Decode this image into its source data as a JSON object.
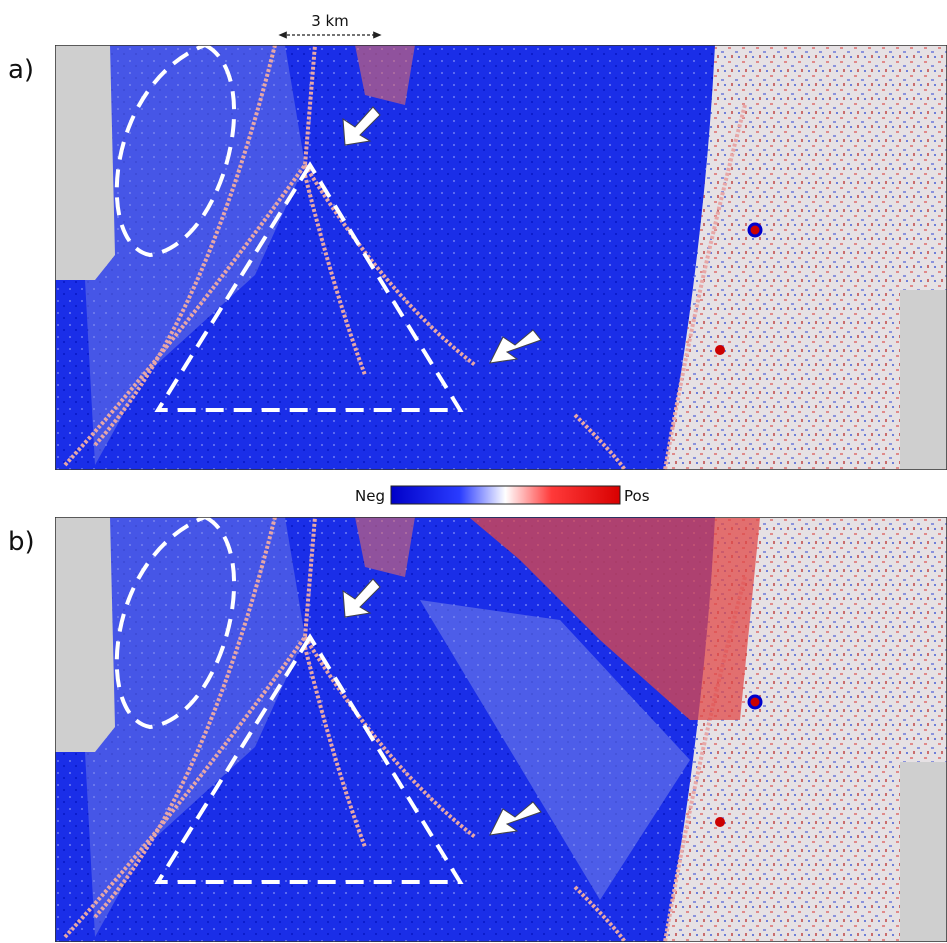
{
  "panels": [
    {
      "label": "a)"
    },
    {
      "label": "b)"
    }
  ],
  "scale_bar": {
    "label": "3 km"
  },
  "colorbar": {
    "min_label": "Neg",
    "max_label": "Pos"
  }
}
